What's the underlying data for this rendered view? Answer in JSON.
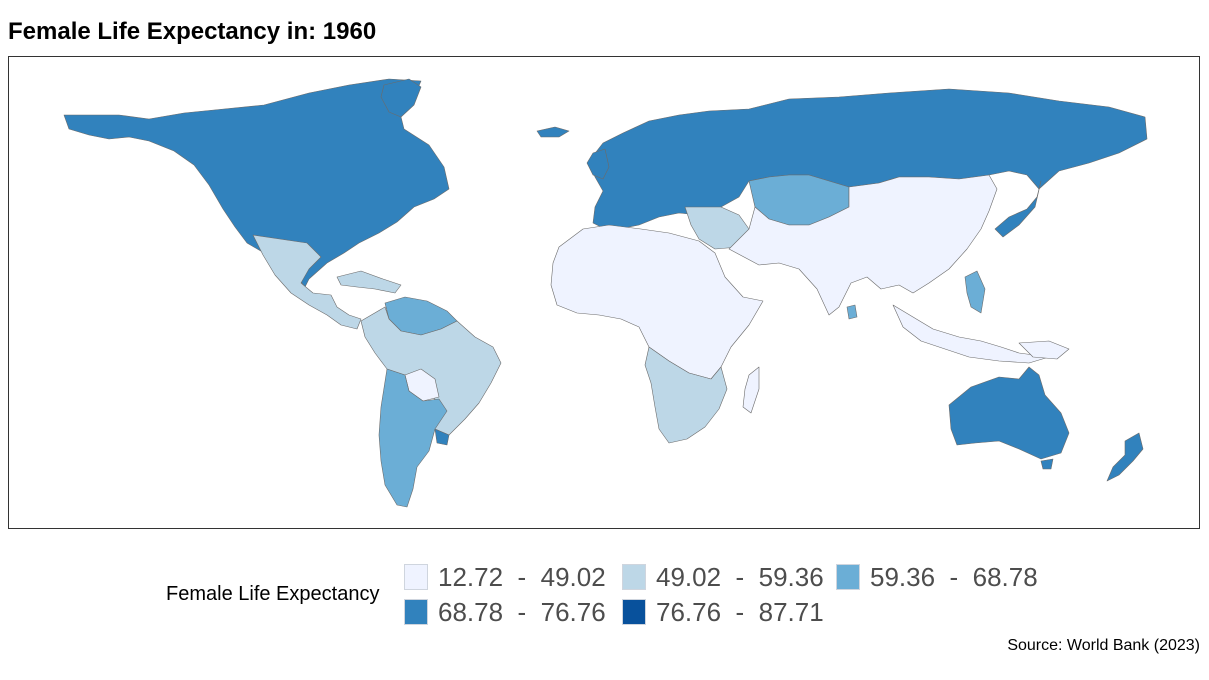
{
  "title": "Female Life Expectancy in: 1960",
  "legend": {
    "title": "Female Life Expectancy",
    "classes": [
      {
        "label": "12.72  -  49.02",
        "color": "#eff3ff"
      },
      {
        "label": "49.02  -  59.36",
        "color": "#bdd7e7"
      },
      {
        "label": "59.36  -  68.78",
        "color": "#6baed6"
      },
      {
        "label": "68.78  -  76.76",
        "color": "#3182bd"
      },
      {
        "label": "76.76  -  87.71",
        "color": "#08519c"
      }
    ]
  },
  "source": "Source: World Bank (2023)",
  "regions": [
    {
      "name": "north-america-high",
      "class": 3
    },
    {
      "name": "greenland",
      "class": 3
    },
    {
      "name": "mexico-central-america",
      "class": 1
    },
    {
      "name": "caribbean",
      "class": 1
    },
    {
      "name": "venezuela-guyana",
      "class": 2
    },
    {
      "name": "south-america-main",
      "class": 1
    },
    {
      "name": "bolivia",
      "class": 0
    },
    {
      "name": "argentina-chile",
      "class": 2
    },
    {
      "name": "uruguay",
      "class": 3
    },
    {
      "name": "europe-russia",
      "class": 3
    },
    {
      "name": "iceland",
      "class": 3
    },
    {
      "name": "uk-ireland",
      "class": 3
    },
    {
      "name": "central-asia",
      "class": 2
    },
    {
      "name": "middle-east",
      "class": 1
    },
    {
      "name": "south-east-asia-china",
      "class": 0
    },
    {
      "name": "japan",
      "class": 3
    },
    {
      "name": "africa-main",
      "class": 0
    },
    {
      "name": "southern-africa",
      "class": 1
    },
    {
      "name": "madagascar",
      "class": 0
    },
    {
      "name": "indonesia",
      "class": 0
    },
    {
      "name": "philippines",
      "class": 2
    },
    {
      "name": "sri-lanka",
      "class": 2
    },
    {
      "name": "australia",
      "class": 3
    },
    {
      "name": "tasmania",
      "class": 3
    },
    {
      "name": "new-zealand",
      "class": 3
    },
    {
      "name": "papua",
      "class": 0
    }
  ]
}
